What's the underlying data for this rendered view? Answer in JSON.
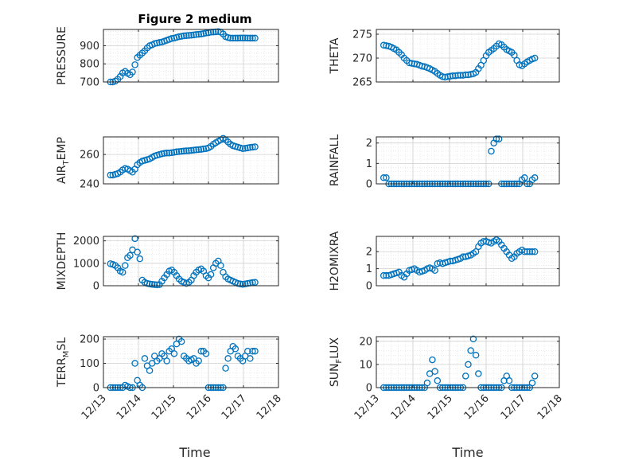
{
  "figure": {
    "title": "Figure 2 medium",
    "xlabel": "Time"
  },
  "style": {
    "marker_color": "#0072BD",
    "axis_color": "#262626",
    "grid_color": "#DFDFDF"
  },
  "x_ticks": [
    "12/13",
    "12/14",
    "12/15",
    "12/16",
    "12/17",
    "12/18"
  ],
  "chart_data": [
    {
      "type": "scatter",
      "ylabel": "PRESSURE",
      "ylim": [
        700,
        990
      ],
      "yticks": [
        700,
        800,
        900
      ],
      "title": "Figure 2 medium",
      "x": [
        13.2,
        13.27,
        13.34,
        13.41,
        13.48,
        13.55,
        13.62,
        13.69,
        13.76,
        13.83,
        13.9,
        13.97,
        14.04,
        14.11,
        14.18,
        14.25,
        14.32,
        14.39,
        14.46,
        14.53,
        14.6,
        14.67,
        14.74,
        14.81,
        14.88,
        14.95,
        15.02,
        15.09,
        15.16,
        15.23,
        15.3,
        15.37,
        15.44,
        15.51,
        15.58,
        15.65,
        15.72,
        15.79,
        15.86,
        15.93,
        16.0,
        16.07,
        16.14,
        16.21,
        16.28,
        16.35,
        16.42,
        16.49,
        16.56,
        16.63,
        16.7,
        16.77,
        16.84,
        16.91,
        16.98,
        17.05,
        17.12,
        17.19,
        17.26,
        17.33
      ],
      "y": [
        700,
        700,
        705,
        715,
        730,
        750,
        758,
        748,
        740,
        755,
        795,
        835,
        848,
        860,
        872,
        888,
        900,
        905,
        912,
        915,
        918,
        920,
        925,
        930,
        935,
        940,
        942,
        946,
        950,
        952,
        955,
        956,
        957,
        958,
        960,
        962,
        963,
        965,
        967,
        970,
        972,
        975,
        976,
        977,
        978,
        975,
        965,
        950,
        945,
        942,
        942,
        942,
        942,
        943,
        943,
        943,
        942,
        942,
        942,
        942
      ]
    },
    {
      "type": "scatter",
      "ylabel": "THETA",
      "ylim": [
        265,
        276
      ],
      "yticks": [
        265,
        270,
        275
      ],
      "x": [
        13.2,
        13.27,
        13.34,
        13.41,
        13.48,
        13.55,
        13.62,
        13.69,
        13.76,
        13.83,
        13.9,
        13.97,
        14.04,
        14.11,
        14.18,
        14.25,
        14.32,
        14.39,
        14.46,
        14.53,
        14.6,
        14.67,
        14.74,
        14.81,
        14.88,
        14.95,
        15.02,
        15.09,
        15.16,
        15.23,
        15.3,
        15.37,
        15.44,
        15.51,
        15.58,
        15.65,
        15.72,
        15.79,
        15.86,
        15.93,
        16.0,
        16.07,
        16.14,
        16.21,
        16.28,
        16.35,
        16.42,
        16.49,
        16.56,
        16.63,
        16.7,
        16.77,
        16.84,
        16.91,
        16.98,
        17.05,
        17.12,
        17.19,
        17.26,
        17.33
      ],
      "y": [
        272.7,
        272.6,
        272.5,
        272.3,
        272.0,
        271.7,
        271.2,
        270.7,
        270.0,
        269.5,
        269.0,
        268.9,
        268.8,
        268.7,
        268.5,
        268.3,
        268.2,
        268.0,
        267.8,
        267.5,
        267.2,
        266.8,
        266.4,
        266.1,
        266.0,
        266.1,
        266.2,
        266.3,
        266.3,
        266.4,
        266.4,
        266.4,
        266.5,
        266.5,
        266.6,
        266.7,
        267.0,
        267.8,
        268.5,
        269.5,
        270.5,
        271.2,
        271.6,
        272.0,
        272.5,
        273.0,
        272.8,
        272.3,
        271.8,
        271.5,
        271.2,
        270.6,
        269.5,
        268.6,
        268.4,
        268.8,
        269.2,
        269.5,
        269.8,
        270.0
      ]
    },
    {
      "type": "scatter",
      "ylabel": "AIR_TEMP",
      "ylabel_main": "AIR",
      "ylabel_sub": "T",
      "ylabel_rest": "EMP",
      "ylim": [
        240,
        272
      ],
      "yticks": [
        240,
        260
      ],
      "x": [
        13.2,
        13.27,
        13.34,
        13.41,
        13.48,
        13.55,
        13.62,
        13.69,
        13.76,
        13.83,
        13.9,
        13.97,
        14.04,
        14.11,
        14.18,
        14.25,
        14.32,
        14.39,
        14.46,
        14.53,
        14.6,
        14.67,
        14.74,
        14.81,
        14.88,
        14.95,
        15.02,
        15.09,
        15.16,
        15.23,
        15.3,
        15.37,
        15.44,
        15.51,
        15.58,
        15.65,
        15.72,
        15.79,
        15.86,
        15.93,
        16.0,
        16.07,
        16.14,
        16.21,
        16.28,
        16.35,
        16.42,
        16.49,
        16.56,
        16.63,
        16.7,
        16.77,
        16.84,
        16.91,
        16.98,
        17.05,
        17.12,
        17.19,
        17.26,
        17.33
      ],
      "y": [
        246,
        246,
        246.5,
        247,
        248,
        249.5,
        250.5,
        250,
        249,
        248,
        250,
        253,
        254.5,
        255.5,
        256,
        256.5,
        257,
        258,
        259,
        259.5,
        260,
        260.5,
        260.8,
        261,
        261,
        261.2,
        261.5,
        261.8,
        262,
        262.2,
        262.4,
        262.5,
        262.6,
        262.8,
        263,
        263.2,
        263.3,
        263.5,
        263.8,
        264,
        264.5,
        265.5,
        267,
        268,
        269,
        270,
        271,
        270,
        268.5,
        267,
        266,
        265.5,
        265,
        264.5,
        264,
        264.2,
        264.5,
        264.8,
        265,
        265.2
      ]
    },
    {
      "type": "scatter",
      "ylabel": "RAINFALL",
      "ylim": [
        0,
        2.3
      ],
      "yticks": [
        0,
        1,
        2
      ],
      "x": [
        13.2,
        13.27,
        13.34,
        13.41,
        13.48,
        13.55,
        13.62,
        13.69,
        13.76,
        13.83,
        13.9,
        13.97,
        14.04,
        14.11,
        14.18,
        14.25,
        14.32,
        14.39,
        14.46,
        14.53,
        14.6,
        14.67,
        14.74,
        14.81,
        14.88,
        14.95,
        15.02,
        15.09,
        15.16,
        15.23,
        15.3,
        15.37,
        15.44,
        15.51,
        15.58,
        15.65,
        15.72,
        15.79,
        15.86,
        15.93,
        16.0,
        16.07,
        16.14,
        16.21,
        16.28,
        16.35,
        16.42,
        16.49,
        16.56,
        16.63,
        16.7,
        16.77,
        16.84,
        16.91,
        16.98,
        17.05,
        17.12,
        17.19,
        17.26,
        17.33
      ],
      "y": [
        0.3,
        0.3,
        0,
        0,
        0,
        0,
        0,
        0,
        0,
        0,
        0,
        0,
        0,
        0,
        0,
        0,
        0,
        0,
        0,
        0,
        0,
        0,
        0,
        0,
        0,
        0,
        0,
        0,
        0,
        0,
        0,
        0,
        0,
        0,
        0,
        0,
        0,
        0,
        0,
        0,
        0,
        0,
        1.6,
        2.0,
        2.2,
        2.2,
        0,
        0,
        0,
        0,
        0,
        0,
        0,
        0,
        0.2,
        0.3,
        0,
        0,
        0.2,
        0.3
      ]
    },
    {
      "type": "scatter",
      "ylabel": "MIXDEPTH",
      "ylim": [
        0,
        2200
      ],
      "yticks": [
        0,
        1000,
        2000
      ],
      "x": [
        13.2,
        13.27,
        13.34,
        13.41,
        13.48,
        13.55,
        13.62,
        13.69,
        13.76,
        13.83,
        13.9,
        13.97,
        14.04,
        14.11,
        14.18,
        14.25,
        14.32,
        14.39,
        14.46,
        14.53,
        14.6,
        14.67,
        14.74,
        14.81,
        14.88,
        14.95,
        15.02,
        15.09,
        15.16,
        15.23,
        15.3,
        15.37,
        15.44,
        15.51,
        15.58,
        15.65,
        15.72,
        15.79,
        15.86,
        15.93,
        16.0,
        16.07,
        16.14,
        16.21,
        16.28,
        16.35,
        16.42,
        16.49,
        16.56,
        16.63,
        16.7,
        16.77,
        16.84,
        16.91,
        16.98,
        17.05,
        17.12,
        17.19,
        17.26,
        17.33
      ],
      "y": [
        980,
        950,
        900,
        800,
        650,
        600,
        900,
        1250,
        1350,
        1600,
        2100,
        1500,
        1200,
        250,
        150,
        100,
        80,
        60,
        50,
        40,
        50,
        200,
        350,
        500,
        650,
        700,
        600,
        450,
        300,
        200,
        150,
        100,
        150,
        250,
        450,
        600,
        700,
        750,
        650,
        450,
        350,
        500,
        800,
        1000,
        1100,
        900,
        600,
        400,
        300,
        250,
        200,
        150,
        100,
        80,
        60,
        80,
        100,
        120,
        140,
        150
      ]
    },
    {
      "type": "scatter",
      "ylabel": "H2OMIXRA",
      "ylim": [
        0,
        2.9
      ],
      "yticks": [
        0,
        1,
        2
      ],
      "x": [
        13.2,
        13.27,
        13.34,
        13.41,
        13.48,
        13.55,
        13.62,
        13.69,
        13.76,
        13.83,
        13.9,
        13.97,
        14.04,
        14.11,
        14.18,
        14.25,
        14.32,
        14.39,
        14.46,
        14.53,
        14.6,
        14.67,
        14.74,
        14.81,
        14.88,
        14.95,
        15.02,
        15.09,
        15.16,
        15.23,
        15.3,
        15.37,
        15.44,
        15.51,
        15.58,
        15.65,
        15.72,
        15.79,
        15.86,
        15.93,
        16.0,
        16.07,
        16.14,
        16.21,
        16.28,
        16.35,
        16.42,
        16.49,
        16.56,
        16.63,
        16.7,
        16.77,
        16.84,
        16.91,
        16.98,
        17.05,
        17.12,
        17.19,
        17.26,
        17.33
      ],
      "y": [
        0.6,
        0.6,
        0.6,
        0.65,
        0.7,
        0.75,
        0.8,
        0.6,
        0.5,
        0.7,
        0.9,
        0.95,
        1.0,
        0.9,
        0.8,
        0.85,
        0.9,
        1.0,
        1.05,
        1.0,
        0.9,
        1.3,
        1.35,
        1.3,
        1.35,
        1.4,
        1.45,
        1.45,
        1.5,
        1.55,
        1.6,
        1.7,
        1.7,
        1.75,
        1.8,
        1.9,
        2.0,
        2.3,
        2.5,
        2.6,
        2.6,
        2.55,
        2.5,
        2.6,
        2.7,
        2.6,
        2.4,
        2.2,
        2.0,
        1.8,
        1.6,
        1.7,
        1.9,
        2.0,
        2.1,
        2.0,
        2.0,
        2.0,
        2.0,
        2.0
      ]
    },
    {
      "type": "scatter",
      "ylabel": "TERR_MSL",
      "ylabel_main": "TERR",
      "ylabel_sub": "M",
      "ylabel_rest": "SL",
      "ylim": [
        0,
        210
      ],
      "yticks": [
        0,
        100,
        200
      ],
      "x": [
        13.2,
        13.27,
        13.34,
        13.41,
        13.48,
        13.55,
        13.62,
        13.69,
        13.76,
        13.83,
        13.9,
        13.97,
        14.04,
        14.11,
        14.18,
        14.25,
        14.32,
        14.39,
        14.46,
        14.53,
        14.6,
        14.67,
        14.74,
        14.81,
        14.88,
        14.95,
        15.02,
        15.09,
        15.16,
        15.23,
        15.3,
        15.37,
        15.44,
        15.51,
        15.58,
        15.65,
        15.72,
        15.79,
        15.86,
        15.93,
        16.0,
        16.07,
        16.14,
        16.21,
        16.28,
        16.35,
        16.42,
        16.49,
        16.56,
        16.63,
        16.7,
        16.77,
        16.84,
        16.91,
        16.98,
        17.05,
        17.12,
        17.19,
        17.26,
        17.33
      ],
      "y": [
        0,
        0,
        0,
        0,
        0,
        0,
        10,
        5,
        0,
        0,
        100,
        30,
        10,
        0,
        120,
        90,
        70,
        100,
        130,
        110,
        120,
        140,
        130,
        110,
        150,
        160,
        140,
        180,
        200,
        190,
        130,
        120,
        110,
        115,
        120,
        100,
        110,
        150,
        150,
        140,
        0,
        0,
        0,
        0,
        0,
        0,
        0,
        80,
        120,
        150,
        170,
        160,
        130,
        120,
        110,
        130,
        150,
        120,
        150,
        150
      ]
    },
    {
      "type": "scatter",
      "ylabel": "SUN_FLUX",
      "ylabel_main": "SUN",
      "ylabel_sub": "F",
      "ylabel_rest": "LUX",
      "ylim": [
        0,
        22
      ],
      "yticks": [
        0,
        10,
        20
      ],
      "x": [
        13.2,
        13.27,
        13.34,
        13.41,
        13.48,
        13.55,
        13.62,
        13.69,
        13.76,
        13.83,
        13.9,
        13.97,
        14.04,
        14.11,
        14.18,
        14.25,
        14.32,
        14.39,
        14.46,
        14.53,
        14.6,
        14.67,
        14.74,
        14.81,
        14.88,
        14.95,
        15.02,
        15.09,
        15.16,
        15.23,
        15.3,
        15.37,
        15.44,
        15.51,
        15.58,
        15.65,
        15.72,
        15.79,
        15.86,
        15.93,
        16.0,
        16.07,
        16.14,
        16.21,
        16.28,
        16.35,
        16.42,
        16.49,
        16.56,
        16.63,
        16.7,
        16.77,
        16.84,
        16.91,
        16.98,
        17.05,
        17.12,
        17.19,
        17.26,
        17.33
      ],
      "y": [
        0,
        0,
        0,
        0,
        0,
        0,
        0,
        0,
        0,
        0,
        0,
        0,
        0,
        0,
        0,
        0,
        0,
        2,
        6,
        12,
        7,
        3,
        0,
        0,
        0,
        0,
        0,
        0,
        0,
        0,
        0,
        0,
        5,
        10,
        16,
        21,
        14,
        6,
        0,
        0,
        0,
        0,
        0,
        0,
        0,
        0,
        0,
        3,
        5,
        3,
        0,
        0,
        0,
        0,
        0,
        0,
        0,
        0,
        2,
        5
      ]
    }
  ]
}
